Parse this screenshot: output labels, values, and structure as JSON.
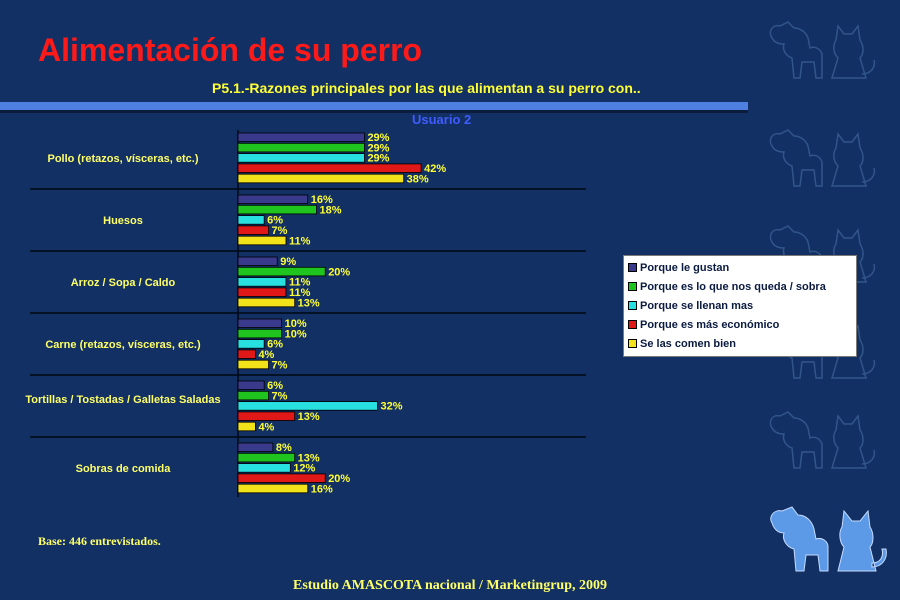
{
  "slide": {
    "title": "Alimentación de su perro",
    "subtitle": "P5.1.-Razones principales por las que alimentan a su perro con..",
    "base_note": "Base: 446 entrevistados.",
    "footer": "Estudio AMASCOTA nacional  / Marketingrup, 2009"
  },
  "decorations": {
    "outline_icon": "dog-and-cat-outline-icon",
    "solid_icon": "dog-and-cat-silhouette-icon"
  },
  "chart_data": {
    "type": "bar",
    "orientation": "horizontal",
    "title": "Usuario 2",
    "value_suffix": "%",
    "xlim": [
      0,
      100
    ],
    "grid": false,
    "legend_position": "right",
    "categories": [
      "Pollo (retazos, vísceras, etc.)",
      "Huesos",
      "Arroz / Sopa / Caldo",
      "Carne (retazos, vísceras, etc.)",
      "Tortillas / Tostadas / Galletas Saladas",
      "Sobras de comida"
    ],
    "series": [
      {
        "name": "Porque le gustan",
        "color": "#3a3a8c",
        "values": [
          29,
          16,
          9,
          10,
          6,
          8
        ]
      },
      {
        "name": "Porque es lo que nos queda / sobra",
        "color": "#1fc41f",
        "values": [
          29,
          18,
          20,
          10,
          7,
          13
        ]
      },
      {
        "name": "Porque se llenan mas",
        "color": "#29e0e0",
        "values": [
          29,
          6,
          11,
          6,
          32,
          12
        ]
      },
      {
        "name": "Porque es más económico",
        "color": "#e01818",
        "values": [
          42,
          7,
          11,
          4,
          13,
          20
        ]
      },
      {
        "name": "Se las comen bien",
        "color": "#f2e21a",
        "values": [
          38,
          11,
          13,
          7,
          4,
          16
        ]
      }
    ]
  }
}
